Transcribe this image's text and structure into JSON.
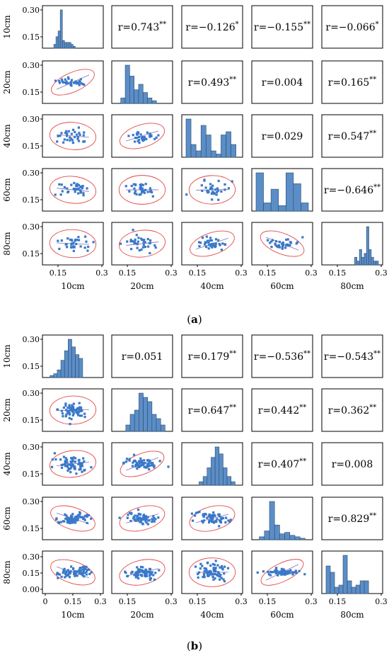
{
  "panels": [
    {
      "label": "a",
      "variables": [
        "10cm",
        "20cm",
        "40cm",
        "60cm",
        "80cm"
      ],
      "y_ticks": [
        [
          "0.15",
          "0.30"
        ],
        [
          "0.15",
          "0.30"
        ],
        [
          "0.15",
          "0.30"
        ],
        [
          "0.15",
          "0.30"
        ],
        [
          "0.15",
          "0.30"
        ]
      ],
      "x_ticks": [
        [
          "0.15",
          "0.3"
        ],
        [
          "0.15",
          "0.3"
        ],
        [
          "0.15",
          "0.3"
        ],
        [
          "0.15",
          "0.3"
        ],
        [
          "0.15",
          "0.3"
        ]
      ],
      "correlations": [
        {
          "row": 0,
          "col": 1,
          "r": "0.743",
          "sig": "**"
        },
        {
          "row": 0,
          "col": 2,
          "r": "−0.126",
          "sig": "*"
        },
        {
          "row": 0,
          "col": 3,
          "r": "−0.155",
          "sig": "**"
        },
        {
          "row": 0,
          "col": 4,
          "r": "−0.066",
          "sig": "*"
        },
        {
          "row": 1,
          "col": 2,
          "r": "0.493",
          "sig": "**"
        },
        {
          "row": 1,
          "col": 3,
          "r": "0.004",
          "sig": ""
        },
        {
          "row": 1,
          "col": 4,
          "r": "0.165",
          "sig": "**"
        },
        {
          "row": 2,
          "col": 3,
          "r": "0.029",
          "sig": ""
        },
        {
          "row": 2,
          "col": 4,
          "r": "0.547",
          "sig": "**"
        },
        {
          "row": 3,
          "col": 4,
          "r": "−0.646",
          "sig": "**"
        }
      ]
    },
    {
      "label": "b",
      "variables": [
        "10cm",
        "20cm",
        "40cm",
        "60cm",
        "80cm"
      ],
      "y_ticks": [
        [
          "0.15",
          "0.30"
        ],
        [
          "0.15",
          "0.30"
        ],
        [
          "0.15",
          "0.30"
        ],
        [
          "0.15",
          "0.30"
        ],
        [
          "0.00",
          "0.15",
          "0.30"
        ]
      ],
      "x_ticks": [
        [
          "0",
          "0.15",
          "0.3"
        ],
        [
          "0.15",
          "0.3"
        ],
        [
          "0.15",
          "0.3"
        ],
        [
          "0.15",
          "0.3"
        ],
        [
          "0.15",
          "0.3"
        ]
      ],
      "correlations": [
        {
          "row": 0,
          "col": 1,
          "r": "0.051",
          "sig": ""
        },
        {
          "row": 0,
          "col": 2,
          "r": "0.179",
          "sig": "**"
        },
        {
          "row": 0,
          "col": 3,
          "r": "−0.536",
          "sig": "**"
        },
        {
          "row": 0,
          "col": 4,
          "r": "−0.543",
          "sig": "**"
        },
        {
          "row": 1,
          "col": 2,
          "r": "0.647",
          "sig": "**"
        },
        {
          "row": 1,
          "col": 3,
          "r": "0.442",
          "sig": "**"
        },
        {
          "row": 1,
          "col": 4,
          "r": "0.362",
          "sig": "**"
        },
        {
          "row": 2,
          "col": 3,
          "r": "0.407",
          "sig": "**"
        },
        {
          "row": 2,
          "col": 4,
          "r": "0.008",
          "sig": ""
        },
        {
          "row": 3,
          "col": 4,
          "r": "0.829",
          "sig": "**"
        }
      ]
    }
  ],
  "chart_data": [
    {
      "type": "scatter",
      "title": "",
      "variables": [
        "10cm",
        "20cm",
        "40cm",
        "60cm",
        "80cm"
      ],
      "axis_range": [
        0.1,
        0.32
      ],
      "correlation_matrix": [
        [
          1,
          0.743,
          -0.126,
          -0.155,
          -0.066
        ],
        [
          0.743,
          1,
          0.493,
          0.004,
          0.165
        ],
        [
          -0.126,
          0.493,
          1,
          0.029,
          0.547
        ],
        [
          -0.155,
          0.004,
          0.029,
          1,
          -0.646
        ],
        [
          -0.066,
          0.165,
          0.547,
          -0.646,
          1
        ]
      ],
      "variable_centers": [
        0.18,
        0.2,
        0.19,
        0.22,
        0.25
      ],
      "variable_spreads": [
        0.03,
        0.025,
        0.06,
        0.06,
        0.03
      ],
      "histograms": [
        {
          "bins": [
            0.13,
            0.22
          ],
          "counts": [
            2,
            6,
            9,
            20,
            4,
            3,
            3,
            3,
            2,
            1
          ]
        },
        {
          "bins": [
            0.12,
            0.27
          ],
          "counts": [
            2,
            14,
            10,
            5,
            7,
            4,
            2,
            1
          ]
        },
        {
          "bins": [
            0.1,
            0.31
          ],
          "counts": [
            12,
            4,
            2,
            10,
            7,
            2,
            1,
            7,
            8,
            4
          ]
        },
        {
          "bins": [
            0.1,
            0.32
          ],
          "counts": [
            14,
            3,
            8,
            2,
            14,
            10,
            3
          ]
        },
        {
          "bins": [
            0.22,
            0.32
          ],
          "counts": [
            2,
            1,
            4,
            2,
            3,
            10,
            4,
            2,
            1,
            1
          ]
        }
      ]
    },
    {
      "type": "scatter",
      "title": "",
      "variables": [
        "10cm",
        "20cm",
        "40cm",
        "60cm",
        "80cm"
      ],
      "axis_range": [
        0.0,
        0.32
      ],
      "correlation_matrix": [
        [
          1,
          0.051,
          0.179,
          -0.536,
          -0.543
        ],
        [
          0.051,
          1,
          0.647,
          0.442,
          0.362
        ],
        [
          0.179,
          0.647,
          1,
          0.407,
          0.008
        ],
        [
          -0.536,
          0.442,
          0.407,
          1,
          0.829
        ],
        [
          -0.543,
          0.362,
          0.008,
          0.829,
          1
        ]
      ],
      "variable_centers": [
        0.16,
        0.19,
        0.19,
        0.15,
        0.12
      ],
      "variable_spreads": [
        0.05,
        0.04,
        0.04,
        0.06,
        0.07
      ],
      "histograms": [
        {
          "bins": [
            0.02,
            0.22
          ],
          "counts": [
            1,
            2,
            4,
            9,
            14,
            20,
            16,
            12,
            10
          ]
        },
        {
          "bins": [
            0.06,
            0.3
          ],
          "counts": [
            3,
            8,
            10,
            18,
            16,
            14,
            8,
            6,
            3
          ]
        },
        {
          "bins": [
            0.08,
            0.3
          ],
          "counts": [
            2,
            5,
            10,
            16,
            22,
            18,
            10,
            5,
            2
          ]
        },
        {
          "bins": [
            0.02,
            0.3
          ],
          "counts": [
            2,
            6,
            26,
            10,
            4,
            5,
            3,
            2,
            1
          ]
        },
        {
          "bins": [
            0.0,
            0.26
          ],
          "counts": [
            13,
            10,
            3,
            4,
            18,
            6,
            3,
            4,
            6,
            6
          ]
        }
      ]
    }
  ]
}
